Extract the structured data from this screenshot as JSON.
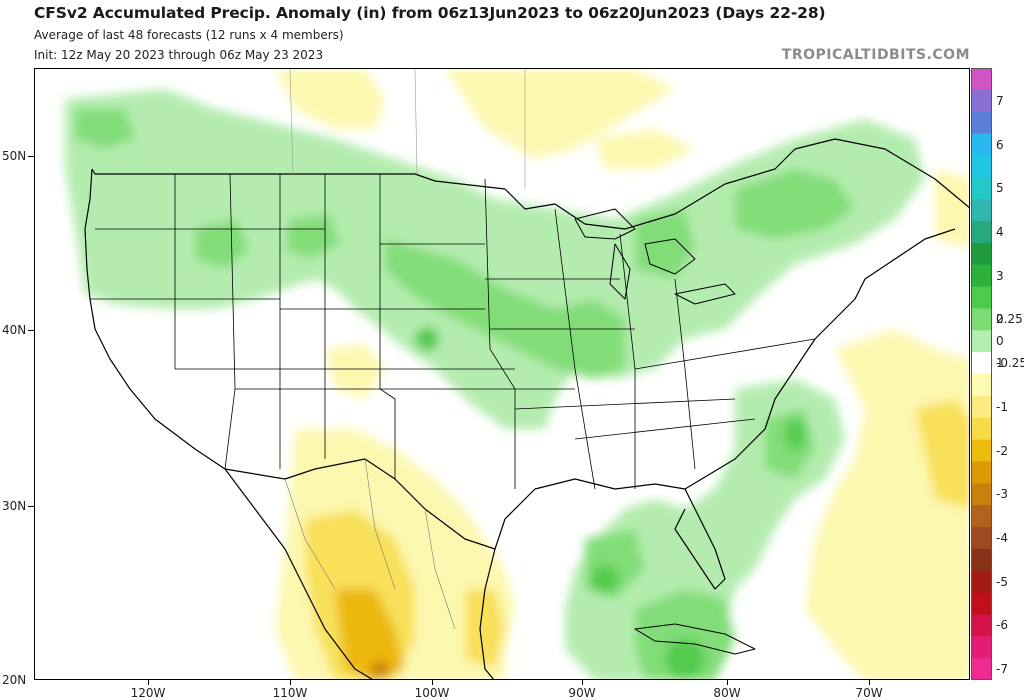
{
  "header": {
    "title": "CFSv2 Accumulated Precip. Anomaly (in) from 06z13Jun2023 to 06z20Jun2023 (Days 22-28)",
    "subtitle1": "Average of last 48 forecasts (12 runs x 4 members)",
    "subtitle2": "Init: 12z May 20 2023 through 06z May 23 2023",
    "brand": "TROPICALTIDBITS.COM"
  },
  "axes": {
    "lat_labels": [
      "50N",
      "40N",
      "30N",
      "20N"
    ],
    "lon_labels": [
      "120W",
      "110W",
      "100W",
      "90W",
      "80W",
      "70W"
    ]
  },
  "colorbar": {
    "labels": [
      "7",
      "6",
      "5",
      "4",
      "3",
      "2",
      "1",
      "0.25",
      "0",
      "-0.25",
      "-1",
      "-2",
      "-3",
      "-4",
      "-5",
      "-6",
      "-7"
    ],
    "colors": [
      "#d153c4",
      "#8a6fd2",
      "#5b7fd9",
      "#29b8ef",
      "#1fc6e6",
      "#22c9c9",
      "#2fb7b0",
      "#27a87e",
      "#1f9b3d",
      "#2bb23a",
      "#4ccb4b",
      "#7bdc74",
      "#b2eeb0",
      "#ffffff",
      "#fefbb2",
      "#fcec7e",
      "#f7db46",
      "#eebc0d",
      "#dd9a07",
      "#c9800d",
      "#b2621a",
      "#9c4a22",
      "#8a3218",
      "#a11a14",
      "#bf0f1a",
      "#d4134a",
      "#e31d73",
      "#f02a93"
    ]
  },
  "legend_units": "in"
}
